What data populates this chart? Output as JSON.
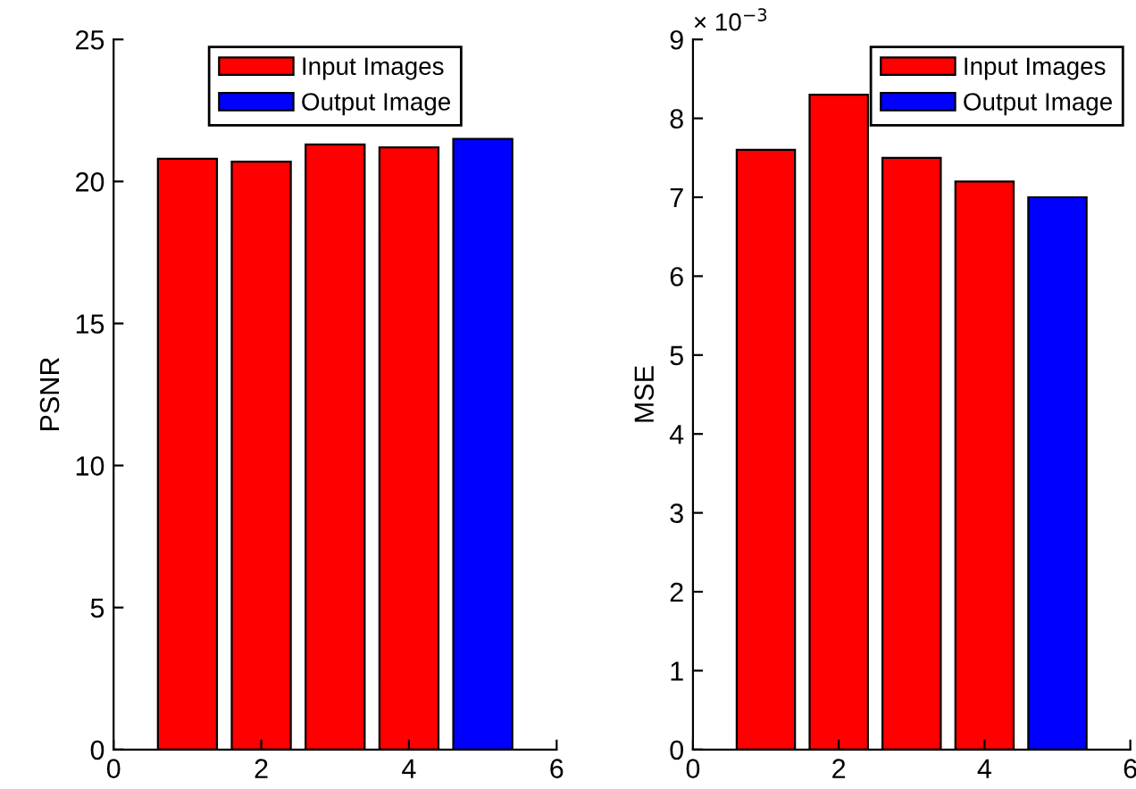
{
  "chart_data": [
    {
      "type": "bar",
      "ylabel": "PSNR",
      "xlim": [
        0,
        6
      ],
      "xticks": [
        0,
        2,
        4,
        6
      ],
      "ylim": [
        0,
        25
      ],
      "yticks": [
        0,
        5,
        10,
        15,
        20,
        25
      ],
      "legend": "top",
      "grid": false,
      "series": [
        {
          "name": "Input Images",
          "color": "#ff0000",
          "x": [
            1,
            2,
            3,
            4
          ],
          "values": [
            20.8,
            20.7,
            21.3,
            21.2
          ]
        },
        {
          "name": "Output Image",
          "color": "#0000ff",
          "x": [
            5
          ],
          "values": [
            21.5
          ]
        }
      ]
    },
    {
      "type": "bar",
      "ylabel": "MSE",
      "xlim": [
        0,
        6
      ],
      "xticks": [
        0,
        2,
        4,
        6
      ],
      "ylim": [
        0,
        9
      ],
      "yticks": [
        0,
        1,
        2,
        3,
        4,
        5,
        6,
        7,
        8,
        9
      ],
      "legend": "top right",
      "grid": false,
      "annotations": [
        "× 10$^{−3}$"
      ],
      "series": [
        {
          "name": "Input Images",
          "color": "#ff0000",
          "x": [
            1,
            2,
            3,
            4
          ],
          "values": [
            7.6,
            8.3,
            7.5,
            7.2
          ]
        },
        {
          "name": "Output Image",
          "color": "#0000ff",
          "x": [
            5
          ],
          "values": [
            7.0
          ]
        }
      ]
    }
  ]
}
